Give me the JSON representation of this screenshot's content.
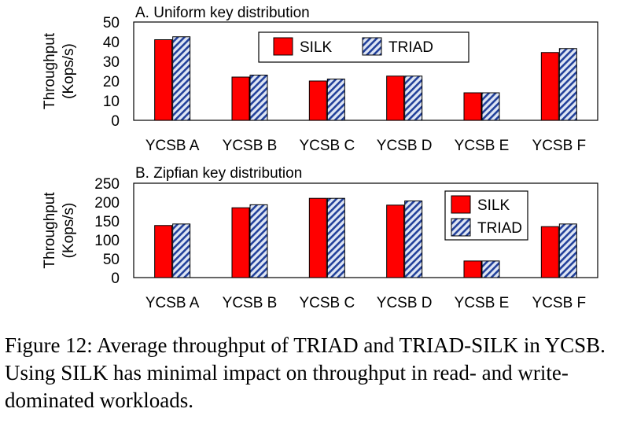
{
  "chart_data": [
    {
      "type": "bar",
      "title": "A. Uniform key distribution",
      "categories": [
        "YCSB A",
        "YCSB B",
        "YCSB C",
        "YCSB D",
        "YCSB E",
        "YCSB F"
      ],
      "series": [
        {
          "name": "SILK",
          "values": [
            41,
            22,
            20,
            22.5,
            14,
            34.5
          ],
          "color": "#ff0000",
          "pattern": "solid"
        },
        {
          "name": "TRIAD",
          "values": [
            42.5,
            23,
            21,
            22.5,
            14,
            36.5
          ],
          "color": "#1f3f8f",
          "pattern": "diagonal-hatch"
        }
      ],
      "ylabel": "Throughput (Kops/s)",
      "ylabel_lines": [
        "Throughput",
        "(Kops/s)"
      ],
      "ylim": [
        0,
        50
      ],
      "yticks": [
        0,
        10,
        20,
        30,
        40,
        50
      ],
      "legend": "top-center"
    },
    {
      "type": "bar",
      "title": "B. Zipfian key distribution",
      "categories": [
        "YCSB A",
        "YCSB B",
        "YCSB C",
        "YCSB D",
        "YCSB E",
        "YCSB F"
      ],
      "series": [
        {
          "name": "SILK",
          "values": [
            138,
            185,
            210,
            192,
            44,
            135
          ],
          "color": "#ff0000",
          "pattern": "solid"
        },
        {
          "name": "TRIAD",
          "values": [
            142,
            193,
            210,
            203,
            44,
            142
          ],
          "color": "#1f3f8f",
          "pattern": "diagonal-hatch"
        }
      ],
      "ylabel": "Throughput (Kops/s)",
      "ylabel_lines": [
        "Throughput",
        "(Kops/s)"
      ],
      "ylim": [
        0,
        250
      ],
      "yticks": [
        0,
        50,
        100,
        150,
        200,
        250
      ],
      "legend": "top-right"
    }
  ],
  "caption": "Figure 12: Average throughput of TRIAD and TRIAD-SILK in YCSB. Using SILK has minimal impact on throughput in read- and write- dominated workloads."
}
